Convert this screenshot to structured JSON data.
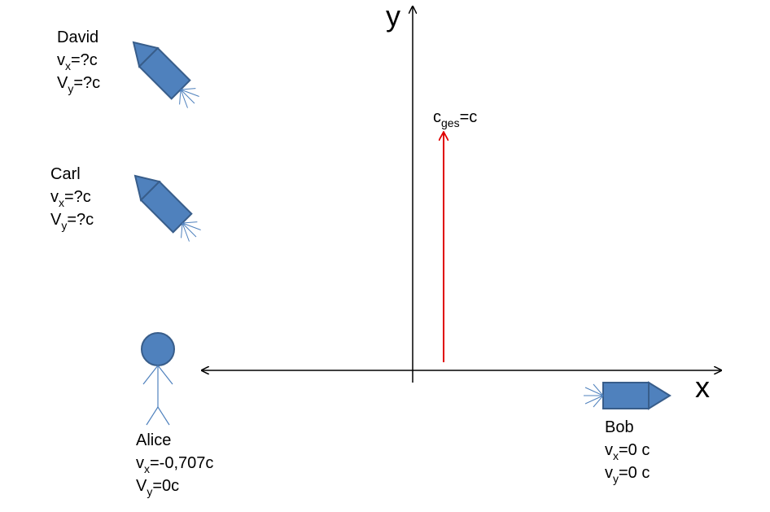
{
  "axes": {
    "y": "y",
    "x": "x"
  },
  "arrow": {
    "label": {
      "base": "c",
      "sub": "ges",
      "rest": "=c"
    }
  },
  "actors": [
    {
      "name": "David",
      "lines": [
        {
          "base": "v",
          "sub": "x",
          "rest": "=?c"
        },
        {
          "base": "V",
          "sub": "y",
          "rest": "=?c"
        }
      ]
    },
    {
      "name": "Carl",
      "lines": [
        {
          "base": "v",
          "sub": "x",
          "rest": "=?c"
        },
        {
          "base": "V",
          "sub": "y",
          "rest": "=?c"
        }
      ]
    },
    {
      "name": "Alice",
      "lines": [
        {
          "base": "v",
          "sub": "x",
          "rest": "=-0,707c"
        },
        {
          "base": "V",
          "sub": "y",
          "rest": "=0c"
        }
      ]
    },
    {
      "name": "Bob",
      "lines": [
        {
          "base": "v",
          "sub": "x",
          "rest": "=0 c"
        },
        {
          "base": "v",
          "sub": "y",
          "rest": "=0 c"
        }
      ]
    }
  ]
}
